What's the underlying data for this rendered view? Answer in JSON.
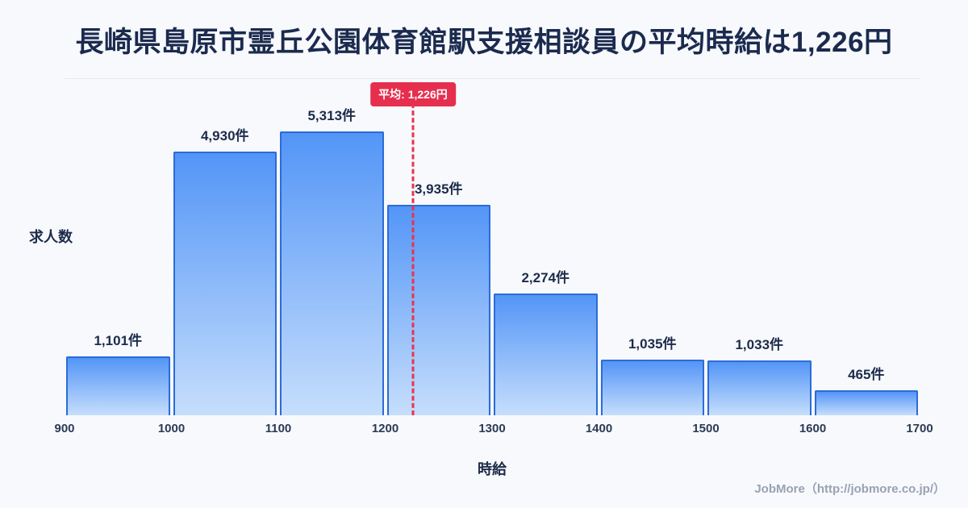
{
  "title": "長崎県島原市霊丘公園体育館駅支援相談員の平均時給は1,226円",
  "chart_data": {
    "type": "bar",
    "subtype": "histogram",
    "title": "長崎県島原市霊丘公園体育館駅支援相談員の平均時給は1,226円",
    "xlabel": "時給",
    "ylabel": "求人数",
    "bin_edges": [
      900,
      1000,
      1100,
      1200,
      1300,
      1400,
      1500,
      1600,
      1700
    ],
    "values": [
      1101,
      4930,
      5313,
      3935,
      2274,
      1035,
      1033,
      465
    ],
    "bar_labels": [
      "1,101件",
      "4,930件",
      "5,313件",
      "3,935件",
      "2,274件",
      "1,035件",
      "1,033件",
      "465件"
    ],
    "x_range": [
      900,
      1700
    ],
    "average": 1226,
    "average_label": "平均: 1,226円",
    "grid": false,
    "legend": false,
    "colors": {
      "bar_fill_top": "#5395f7",
      "bar_fill_bottom": "#c6defc",
      "bar_border": "#2b6cd9",
      "average_line": "#e8344e",
      "average_badge_bg": "#e62e4e",
      "title_text": "#1b2a4e",
      "background": "#f7f9fc"
    }
  },
  "footer": {
    "credit": "JobMore（http://jobmore.co.jp/）"
  }
}
